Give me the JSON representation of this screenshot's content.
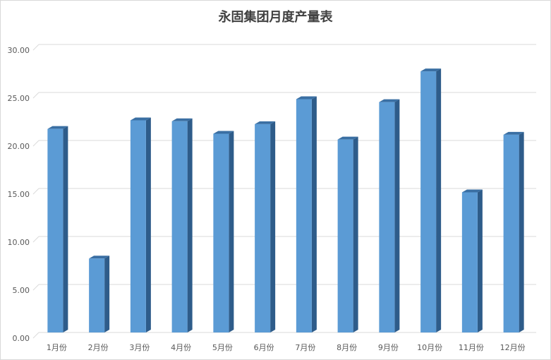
{
  "chart_data": {
    "type": "bar",
    "title": "永固集团月度产量表",
    "categories": [
      "1月份",
      "2月份",
      "3月份",
      "4月份",
      "5月份",
      "6月份",
      "7月份",
      "8月份",
      "9月份",
      "10月份",
      "11月份",
      "12月份"
    ],
    "series": [
      {
        "values": [
          21.2,
          7.7,
          22.1,
          22.0,
          20.7,
          21.7,
          24.3,
          20.1,
          24.0,
          27.2,
          14.6,
          20.6
        ]
      }
    ],
    "yticks": [
      "0.00",
      "5.00",
      "10.00",
      "15.00",
      "20.00",
      "25.00",
      "30.00"
    ],
    "ylim": [
      0,
      30
    ],
    "grid": true,
    "colors": {
      "bar_front": "#5b9bd5",
      "bar_side": "#2e5c8a",
      "bar_top": "#3a6fa3",
      "grid": "#d9d9d9"
    }
  }
}
